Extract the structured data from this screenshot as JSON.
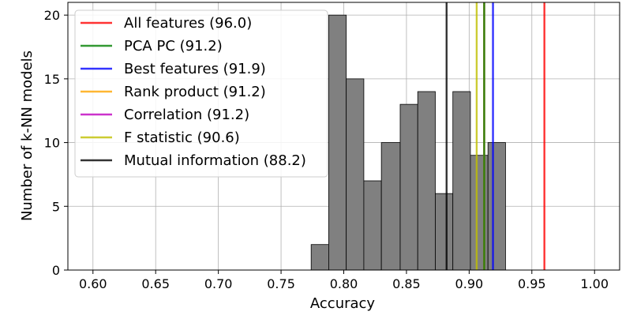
{
  "chart_data": {
    "type": "histogram",
    "xlabel": "Accuracy",
    "ylabel": "Number of k-NN models",
    "xlim": [
      0.58,
      1.02
    ],
    "ylim": [
      0,
      21
    ],
    "xticks": [
      0.6,
      0.65,
      0.7,
      0.75,
      0.8,
      0.85,
      0.9,
      0.95,
      1.0
    ],
    "xtick_labels": [
      "0.60",
      "0.65",
      "0.70",
      "0.75",
      "0.80",
      "0.85",
      "0.90",
      "0.95",
      "1.00"
    ],
    "yticks": [
      0,
      5,
      10,
      15,
      20
    ],
    "ytick_labels": [
      "0",
      "5",
      "10",
      "15",
      "20"
    ],
    "grid": true,
    "legend_position": "top-left",
    "bar_color": "#808080",
    "bins": [
      {
        "x0": 0.774,
        "x1": 0.788,
        "count": 2
      },
      {
        "x0": 0.788,
        "x1": 0.802,
        "count": 20
      },
      {
        "x0": 0.802,
        "x1": 0.816,
        "count": 15
      },
      {
        "x0": 0.816,
        "x1": 0.83,
        "count": 7
      },
      {
        "x0": 0.83,
        "x1": 0.845,
        "count": 10
      },
      {
        "x0": 0.845,
        "x1": 0.859,
        "count": 13
      },
      {
        "x0": 0.859,
        "x1": 0.873,
        "count": 14
      },
      {
        "x0": 0.873,
        "x1": 0.887,
        "count": 6
      },
      {
        "x0": 0.887,
        "x1": 0.901,
        "count": 14
      },
      {
        "x0": 0.901,
        "x1": 0.915,
        "count": 9
      },
      {
        "x0": 0.915,
        "x1": 0.929,
        "count": 10
      }
    ],
    "reference_lines": [
      {
        "label": "All features (96.0)",
        "x": 0.96,
        "color": "#ff0000"
      },
      {
        "label": "PCA PC (91.2)",
        "x": 0.912,
        "color": "#008000"
      },
      {
        "label": "Best features (91.9)",
        "x": 0.919,
        "color": "#0000ff"
      },
      {
        "label": "Rank product (91.2)",
        "x": 0.912,
        "color": "#ffa500"
      },
      {
        "label": "Correlation (91.2)",
        "x": 0.912,
        "color": "#bf00bf"
      },
      {
        "label": "F statistic (90.6)",
        "x": 0.906,
        "color": "#bfbf00"
      },
      {
        "label": "Mutual information (88.2)",
        "x": 0.882,
        "color": "#000000"
      }
    ]
  }
}
